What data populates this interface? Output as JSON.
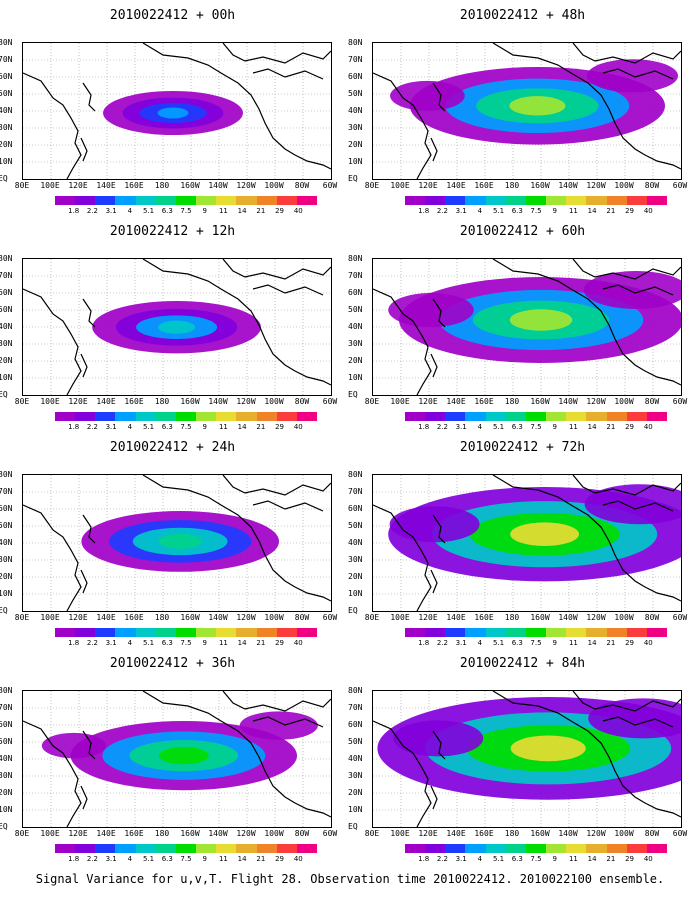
{
  "caption": "Signal Variance for u,v,T. Flight 28. Observation time 2010022412. 2010022100 ensemble.",
  "x_tick_labels": [
    "80E",
    "100E",
    "120E",
    "140E",
    "160E",
    "180",
    "160W",
    "140W",
    "120W",
    "100W",
    "80W",
    "60W"
  ],
  "y_tick_labels": [
    "80N",
    "70N",
    "60N",
    "50N",
    "40N",
    "30N",
    "20N",
    "10N",
    "EQ"
  ],
  "colorbar": {
    "labels": [
      "1.8",
      "2.2",
      "3.1",
      "4",
      "5.1",
      "6.3",
      "7.5",
      "9",
      "11",
      "14",
      "21",
      "29",
      "40"
    ],
    "colors": [
      "#a000c8",
      "#8200dc",
      "#1e3cff",
      "#00a0ff",
      "#00c8c8",
      "#00d28c",
      "#00dc00",
      "#a0e632",
      "#e6dc32",
      "#e6af2d",
      "#f08228",
      "#fa3c3c",
      "#f00082"
    ]
  },
  "panels": [
    {
      "title": "2010022412 + 00h",
      "lead_hours": 0
    },
    {
      "title": "2010022412 + 48h",
      "lead_hours": 48
    },
    {
      "title": "2010022412 + 12h",
      "lead_hours": 12
    },
    {
      "title": "2010022412 + 60h",
      "lead_hours": 60
    },
    {
      "title": "2010022412 + 24h",
      "lead_hours": 24
    },
    {
      "title": "2010022412 + 72h",
      "lead_hours": 72
    },
    {
      "title": "2010022412 + 36h",
      "lead_hours": 36
    },
    {
      "title": "2010022412 + 84h",
      "lead_hours": 84
    }
  ]
}
